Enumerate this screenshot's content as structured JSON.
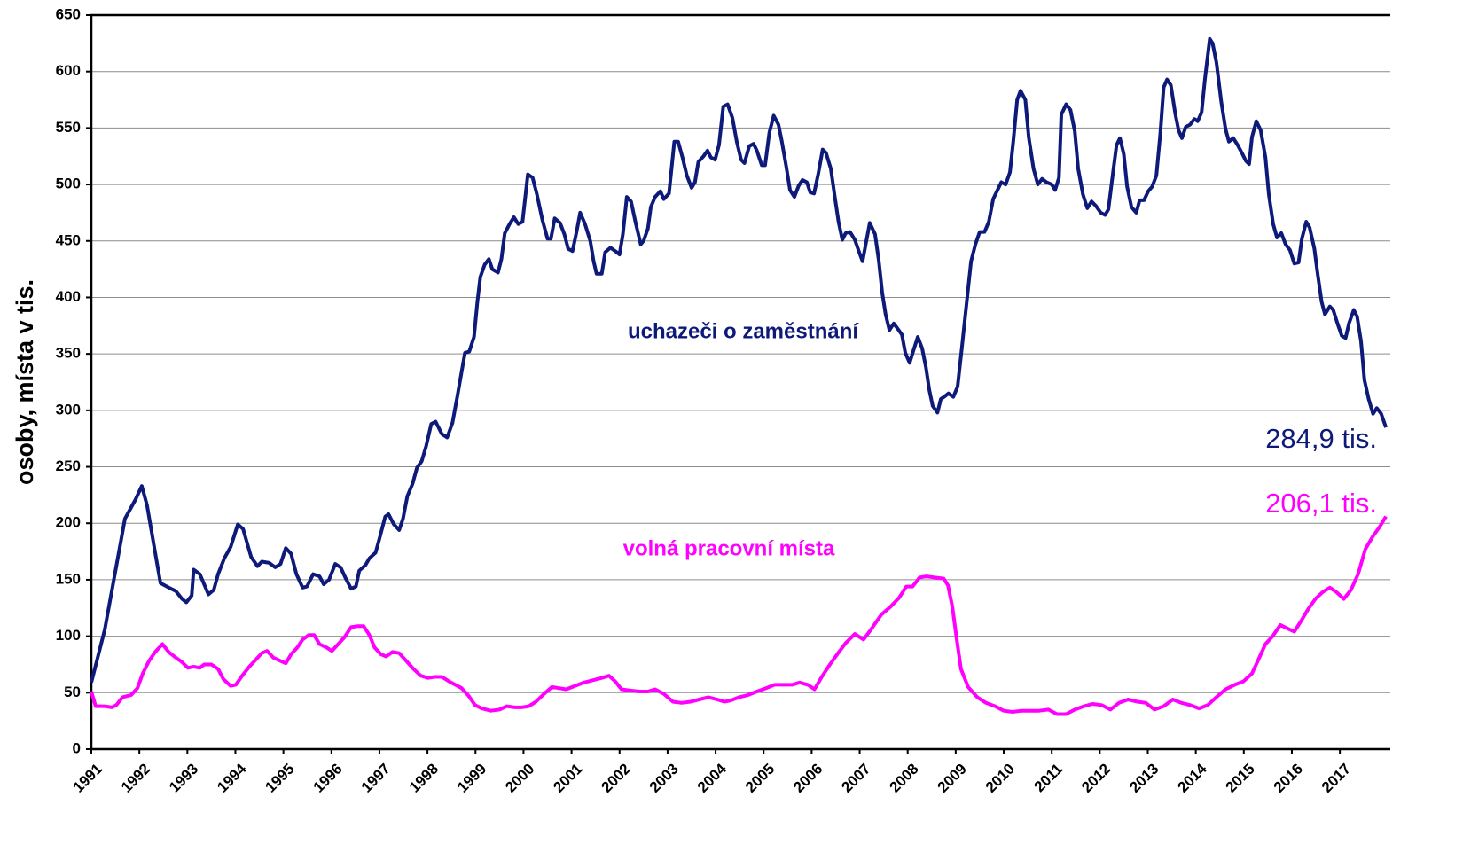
{
  "chart_data": {
    "type": "line",
    "ylabel": "osoby, místa v tis.",
    "xlim": [
      1991,
      2018.05
    ],
    "xticks": [
      1991,
      1992,
      1993,
      1994,
      1995,
      1996,
      1997,
      1998,
      1999,
      2000,
      2001,
      2002,
      2003,
      2004,
      2005,
      2006,
      2007,
      2008,
      2009,
      2010,
      2011,
      2012,
      2013,
      2014,
      2015,
      2016,
      2017
    ],
    "ylim": [
      0,
      650
    ],
    "yticks": [
      0,
      50,
      100,
      150,
      200,
      250,
      300,
      350,
      400,
      450,
      500,
      550,
      600,
      650
    ],
    "grid": true,
    "series": [
      {
        "name": "uchazeči o zaměstnání",
        "color": "#0d1a7a",
        "end_label": "284,9 tis.",
        "x": [
          1991.0,
          1991.28,
          1991.55,
          1991.7,
          1991.92,
          1992.05,
          1992.16,
          1992.35,
          1992.44,
          1992.66,
          1992.76,
          1992.89,
          1992.98,
          1993.09,
          1993.13,
          1993.26,
          1993.44,
          1993.55,
          1993.64,
          1993.77,
          1993.9,
          1994.05,
          1994.16,
          1994.33,
          1994.46,
          1994.55,
          1994.7,
          1994.83,
          1994.94,
          1995.05,
          1995.16,
          1995.27,
          1995.4,
          1995.49,
          1995.62,
          1995.75,
          1995.84,
          1995.95,
          1996.08,
          1996.19,
          1996.3,
          1996.41,
          1996.51,
          1996.58,
          1996.71,
          1996.79,
          1996.92,
          1997.01,
          1997.12,
          1997.19,
          1997.3,
          1997.41,
          1997.49,
          1997.58,
          1997.69,
          1997.78,
          1997.88,
          1997.97,
          1998.08,
          1998.17,
          1998.3,
          1998.41,
          1998.52,
          1998.62,
          1998.71,
          1998.78,
          1998.87,
          1998.97,
          1999.04,
          1999.1,
          1999.19,
          1999.28,
          1999.35,
          1999.47,
          1999.54,
          1999.61,
          1999.71,
          1999.8,
          1999.89,
          1999.98,
          2000.09,
          2000.19,
          2000.28,
          2000.39,
          2000.5,
          2000.57,
          2000.65,
          2000.76,
          2000.85,
          2000.93,
          2001.02,
          2001.11,
          2001.18,
          2001.28,
          2001.39,
          2001.46,
          2001.52,
          2001.63,
          2001.7,
          2001.81,
          2001.91,
          2002.0,
          2002.07,
          2002.15,
          2002.24,
          2002.33,
          2002.44,
          2002.5,
          2002.59,
          2002.65,
          2002.74,
          2002.85,
          2002.92,
          2003.03,
          2003.14,
          2003.22,
          2003.31,
          2003.4,
          2003.5,
          2003.57,
          2003.64,
          2003.75,
          2003.83,
          2003.9,
          2003.99,
          2004.07,
          2004.16,
          2004.25,
          2004.35,
          2004.44,
          2004.53,
          2004.6,
          2004.7,
          2004.79,
          2004.86,
          2004.96,
          2005.03,
          2005.12,
          2005.21,
          2005.31,
          2005.38,
          2005.47,
          2005.55,
          2005.64,
          2005.73,
          2005.81,
          2005.9,
          2005.97,
          2006.05,
          2006.14,
          2006.23,
          2006.3,
          2006.4,
          2006.49,
          2006.56,
          2006.64,
          2006.71,
          2006.8,
          2006.9,
          2006.99,
          2007.06,
          2007.14,
          2007.21,
          2007.32,
          2007.4,
          2007.47,
          2007.54,
          2007.62,
          2007.71,
          2007.78,
          2007.88,
          2007.95,
          2008.04,
          2008.12,
          2008.21,
          2008.3,
          2008.38,
          2008.45,
          2008.52,
          2008.62,
          2008.69,
          2008.76,
          2008.85,
          2008.95,
          2009.04,
          2009.13,
          2009.23,
          2009.32,
          2009.41,
          2009.5,
          2009.6,
          2009.69,
          2009.78,
          2009.87,
          2009.95,
          2010.04,
          2010.13,
          2010.2,
          2010.28,
          2010.35,
          2010.45,
          2010.52,
          2010.62,
          2010.71,
          2010.8,
          2010.89,
          2011.0,
          2011.07,
          2011.15,
          2011.2,
          2011.3,
          2011.39,
          2011.48,
          2011.55,
          2011.65,
          2011.74,
          2011.83,
          2011.92,
          2012.02,
          2012.11,
          2012.18,
          2012.28,
          2012.35,
          2012.42,
          2012.5,
          2012.57,
          2012.66,
          2012.76,
          2012.83,
          2012.92,
          2013.01,
          2013.09,
          2013.18,
          2013.26,
          2013.33,
          2013.4,
          2013.48,
          2013.57,
          2013.64,
          2013.71,
          2013.79,
          2013.88,
          2013.97,
          2014.04,
          2014.12,
          2014.19,
          2014.29,
          2014.35,
          2014.43,
          2014.53,
          2014.62,
          2014.69,
          2014.78,
          2014.87,
          2014.96,
          2015.04,
          2015.11,
          2015.17,
          2015.26,
          2015.35,
          2015.45,
          2015.52,
          2015.61,
          2015.69,
          2015.78,
          2015.87,
          2015.96,
          2016.05,
          2016.14,
          2016.21,
          2016.3,
          2016.37,
          2016.47,
          2016.54,
          2016.62,
          2016.69,
          2016.79,
          2016.86,
          2016.95,
          2017.04,
          2017.12,
          2017.19,
          2017.29,
          2017.36,
          2017.44,
          2017.51,
          2017.6,
          2017.69,
          2017.77,
          2017.86,
          2017.96
        ],
        "values": [
          59,
          106,
          169,
          204,
          221,
          233,
          216,
          169,
          147,
          142,
          140,
          133,
          130,
          136,
          159,
          155,
          137,
          141,
          155,
          169,
          179,
          199,
          195,
          170,
          162,
          166,
          165,
          161,
          164,
          178,
          173,
          155,
          143,
          144,
          155,
          153,
          146,
          150,
          164,
          161,
          151,
          142,
          144,
          158,
          163,
          169,
          174,
          188,
          206,
          208,
          199,
          194,
          204,
          224,
          235,
          249,
          255,
          268,
          288,
          290,
          279,
          276,
          289,
          312,
          334,
          351,
          352,
          365,
          396,
          418,
          429,
          434,
          425,
          422,
          434,
          457,
          465,
          471,
          465,
          467,
          509,
          506,
          491,
          469,
          452,
          452,
          470,
          466,
          456,
          443,
          441,
          459,
          475,
          465,
          450,
          432,
          421,
          421,
          440,
          444,
          441,
          438,
          456,
          489,
          485,
          467,
          447,
          450,
          461,
          480,
          489,
          494,
          487,
          492,
          538,
          538,
          524,
          508,
          497,
          502,
          520,
          525,
          530,
          524,
          522,
          535,
          569,
          571,
          559,
          538,
          522,
          519,
          534,
          536,
          530,
          517,
          517,
          546,
          561,
          553,
          538,
          516,
          495,
          489,
          499,
          504,
          502,
          493,
          492,
          510,
          531,
          528,
          514,
          487,
          467,
          451,
          457,
          458,
          451,
          440,
          432,
          450,
          466,
          456,
          432,
          404,
          385,
          371,
          377,
          373,
          367,
          351,
          342,
          353,
          365,
          355,
          338,
          318,
          304,
          298,
          310,
          312,
          315,
          312,
          321,
          356,
          396,
          432,
          447,
          458,
          458,
          467,
          487,
          495,
          502,
          500,
          511,
          539,
          575,
          583,
          575,
          542,
          514,
          500,
          505,
          502,
          500,
          495,
          506,
          562,
          571,
          566,
          547,
          514,
          491,
          479,
          485,
          481,
          475,
          473,
          478,
          512,
          535,
          541,
          527,
          498,
          480,
          475,
          486,
          486,
          494,
          498,
          508,
          545,
          586,
          593,
          588,
          563,
          548,
          541,
          551,
          553,
          558,
          556,
          564,
          593,
          629,
          625,
          608,
          573,
          549,
          538,
          541,
          535,
          528,
          521,
          518,
          542,
          556,
          548,
          524,
          491,
          465,
          453,
          457,
          447,
          442,
          430,
          431,
          452,
          467,
          462,
          443,
          420,
          396,
          385,
          392,
          389,
          377,
          366,
          364,
          377,
          389,
          383,
          361,
          327,
          310,
          297,
          302,
          297,
          284.9
        ]
      },
      {
        "name": "volná pracovní místa",
        "color": "#ff00ff",
        "end_label": "206,1 tis.",
        "x": [
          1991.0,
          1991.09,
          1991.28,
          1991.43,
          1991.52,
          1991.65,
          1991.83,
          1991.96,
          1992.07,
          1992.2,
          1992.33,
          1992.48,
          1992.61,
          1992.76,
          1992.89,
          1993.01,
          1993.13,
          1993.26,
          1993.35,
          1993.5,
          1993.64,
          1993.75,
          1993.9,
          1994.01,
          1994.14,
          1994.29,
          1994.42,
          1994.55,
          1994.66,
          1994.79,
          1994.94,
          1995.05,
          1995.16,
          1995.29,
          1995.4,
          1995.53,
          1995.64,
          1995.75,
          1995.9,
          1996.01,
          1996.12,
          1996.27,
          1996.41,
          1996.55,
          1996.67,
          1996.79,
          1996.9,
          1997.03,
          1997.14,
          1997.27,
          1997.41,
          1997.56,
          1997.71,
          1997.86,
          1998.01,
          1998.15,
          1998.3,
          1998.45,
          1998.58,
          1998.71,
          1998.86,
          1998.99,
          1999.13,
          1999.32,
          1999.5,
          1999.65,
          1999.82,
          1999.96,
          2000.11,
          2000.26,
          2000.43,
          2000.59,
          2000.74,
          2000.89,
          2001.07,
          2001.26,
          2001.44,
          2001.63,
          2001.78,
          2001.91,
          2002.04,
          2002.22,
          2002.41,
          2002.59,
          2002.74,
          2002.92,
          2003.11,
          2003.29,
          2003.48,
          2003.66,
          2003.85,
          2004.03,
          2004.18,
          2004.31,
          2004.49,
          2004.68,
          2004.86,
          2005.05,
          2005.23,
          2005.42,
          2005.6,
          2005.75,
          2005.92,
          2006.06,
          2006.21,
          2006.38,
          2006.55,
          2006.71,
          2006.9,
          2007.08,
          2007.27,
          2007.45,
          2007.64,
          2007.82,
          2007.97,
          2008.1,
          2008.25,
          2008.39,
          2008.56,
          2008.75,
          2008.84,
          2008.93,
          2009.02,
          2009.11,
          2009.26,
          2009.45,
          2009.63,
          2009.82,
          2010.0,
          2010.19,
          2010.37,
          2010.56,
          2010.74,
          2010.93,
          2011.11,
          2011.3,
          2011.48,
          2011.67,
          2011.85,
          2012.04,
          2012.22,
          2012.4,
          2012.59,
          2012.78,
          2012.96,
          2013.14,
          2013.33,
          2013.52,
          2013.7,
          2013.88,
          2014.07,
          2014.25,
          2014.43,
          2014.62,
          2014.81,
          2014.99,
          2015.17,
          2015.3,
          2015.45,
          2015.6,
          2015.76,
          2015.9,
          2016.05,
          2016.2,
          2016.34,
          2016.49,
          2016.64,
          2016.79,
          2016.93,
          2017.08,
          2017.23,
          2017.38,
          2017.53,
          2017.68,
          2017.83,
          2017.96
        ],
        "values": [
          51,
          38,
          38,
          37,
          39,
          46,
          48,
          54,
          67,
          78,
          86,
          93,
          86,
          81,
          77,
          72,
          73,
          72,
          75,
          75,
          71,
          62,
          56,
          57,
          65,
          73,
          79,
          85,
          87,
          81,
          78,
          76,
          84,
          90,
          97,
          101,
          101,
          93,
          90,
          87,
          92,
          99,
          108,
          109,
          109,
          101,
          90,
          84,
          82,
          86,
          85,
          78,
          71,
          65,
          63,
          64,
          64,
          60,
          57,
          54,
          47,
          39,
          36,
          34,
          35,
          38,
          37,
          37,
          38,
          42,
          49,
          55,
          54,
          53,
          56,
          59,
          61,
          63,
          65,
          60,
          53,
          52,
          51,
          51,
          53,
          49,
          42,
          41,
          42,
          44,
          46,
          44,
          42,
          43,
          46,
          48,
          51,
          54,
          57,
          57,
          57,
          59,
          57,
          53,
          64,
          75,
          85,
          94,
          102,
          97,
          108,
          119,
          126,
          134,
          144,
          144,
          152,
          153,
          152,
          151,
          145,
          126,
          98,
          71,
          55,
          46,
          41,
          38,
          34,
          33,
          34,
          34,
          34,
          35,
          31,
          31,
          35,
          38,
          40,
          39,
          35,
          41,
          44,
          42,
          41,
          35,
          38,
          44,
          41,
          39,
          36,
          39,
          46,
          53,
          57,
          60,
          67,
          79,
          93,
          100,
          110,
          107,
          104,
          114,
          124,
          133,
          139,
          143,
          139,
          133,
          141,
          155,
          177,
          188,
          197,
          206.1
        ]
      }
    ]
  }
}
